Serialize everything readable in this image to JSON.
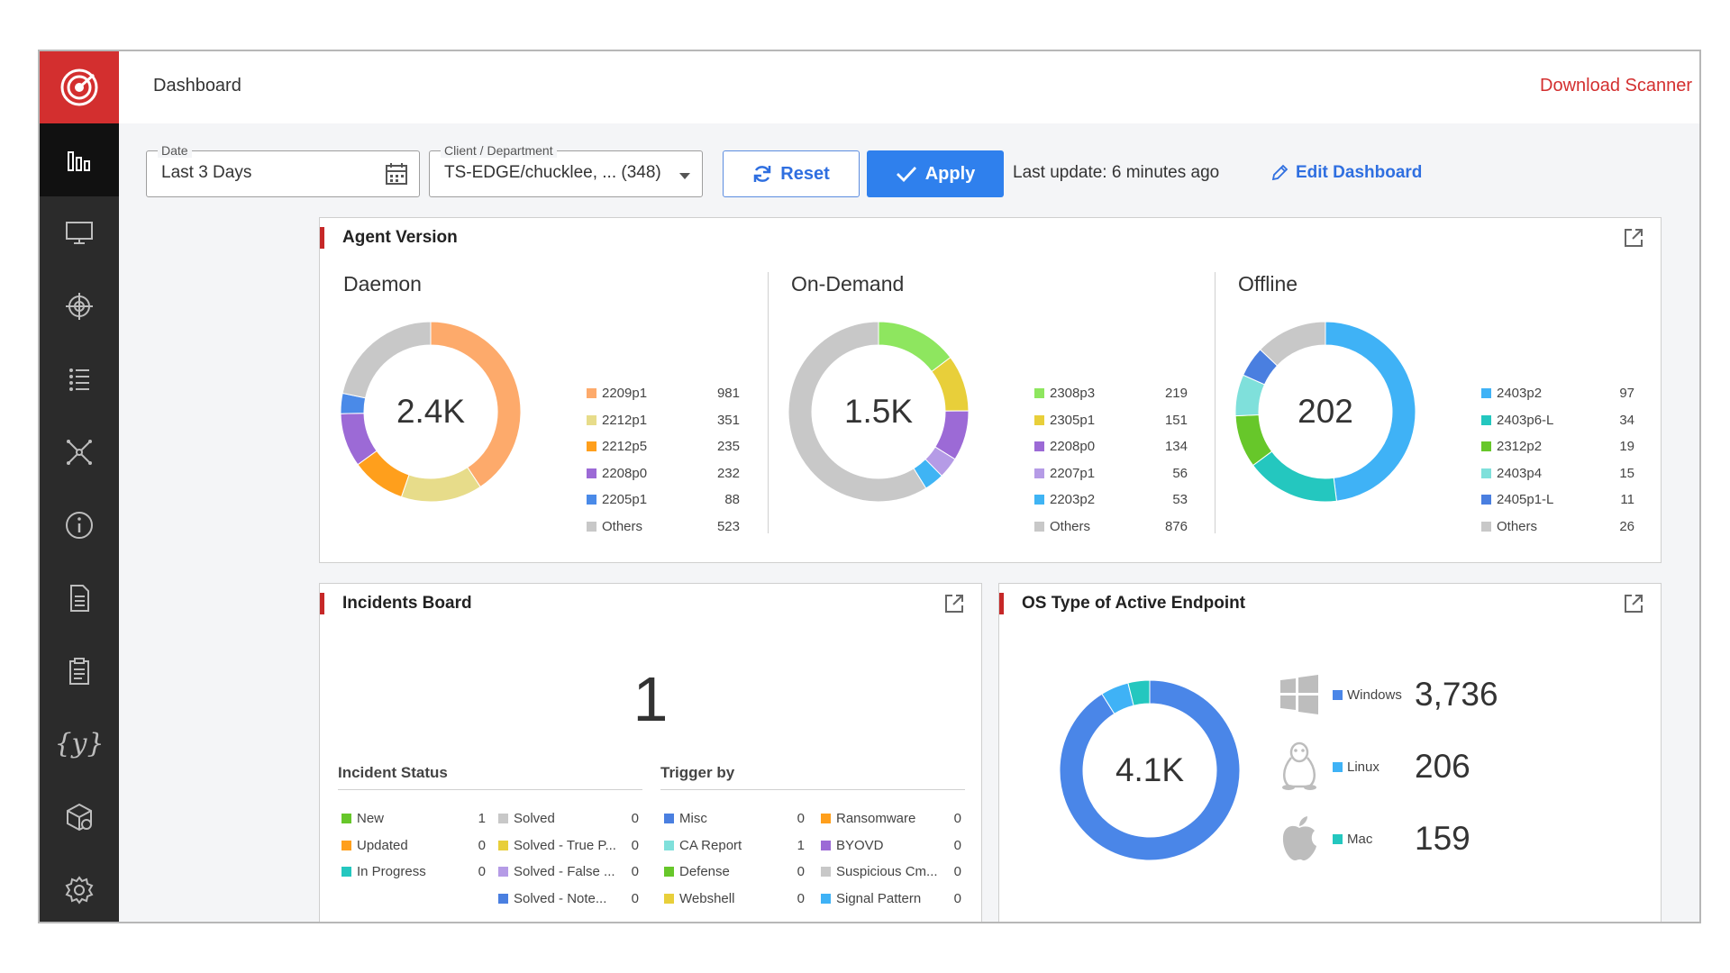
{
  "header": {
    "title": "Dashboard",
    "download_label": "Download Scanner"
  },
  "filters": {
    "date_label": "Date",
    "date_value": "Last 3 Days",
    "client_label": "Client / Department",
    "client_value": "TS-EDGE/chucklee, ... (348)",
    "reset_label": "Reset",
    "apply_label": "Apply",
    "last_update": "Last update: 6 minutes ago",
    "edit_label": "Edit Dashboard"
  },
  "agent_version": {
    "title": "Agent Version",
    "daemon": {
      "title": "Daemon",
      "center": "2.4K",
      "items": [
        {
          "label": "2209p1",
          "value": 981,
          "color": "#fdaa6b"
        },
        {
          "label": "2212p1",
          "value": 351,
          "color": "#e7dc8a"
        },
        {
          "label": "2212p5",
          "value": 235,
          "color": "#ff9f1c"
        },
        {
          "label": "2208p0",
          "value": 232,
          "color": "#9c6ad6"
        },
        {
          "label": "2205p1",
          "value": 88,
          "color": "#4a8ae8"
        },
        {
          "label": "Others",
          "value": 523,
          "color": "#c8c8c8"
        }
      ]
    },
    "ondemand": {
      "title": "On-Demand",
      "center": "1.5K",
      "items": [
        {
          "label": "2308p3",
          "value": 219,
          "color": "#8ee65f"
        },
        {
          "label": "2305p1",
          "value": 151,
          "color": "#e8cf3a"
        },
        {
          "label": "2208p0",
          "value": 134,
          "color": "#9c6ad6"
        },
        {
          "label": "2207p1",
          "value": 56,
          "color": "#b59be6"
        },
        {
          "label": "2203p2",
          "value": 53,
          "color": "#3fb4f4"
        },
        {
          "label": "Others",
          "value": 876,
          "color": "#c8c8c8"
        }
      ]
    },
    "offline": {
      "title": "Offline",
      "center": "202",
      "items": [
        {
          "label": "2403p2",
          "value": 97,
          "color": "#3fb2f6"
        },
        {
          "label": "2403p6-L",
          "value": 34,
          "color": "#24c7bf"
        },
        {
          "label": "2312p2",
          "value": 19,
          "color": "#67c72a"
        },
        {
          "label": "2403p4",
          "value": 15,
          "color": "#7fe0db"
        },
        {
          "label": "2405p1-L",
          "value": 11,
          "color": "#4a7fe0"
        },
        {
          "label": "Others",
          "value": 26,
          "color": "#c8c8c8"
        }
      ]
    }
  },
  "incidents": {
    "title": "Incidents Board",
    "count": "1",
    "status_head": "Incident Status",
    "trigger_head": "Trigger by",
    "status_left": [
      {
        "label": "New",
        "value": "1",
        "color": "#67c72a"
      },
      {
        "label": "Updated",
        "value": "0",
        "color": "#ff9f1c"
      },
      {
        "label": "In Progress",
        "value": "0",
        "color": "#24c7bf"
      }
    ],
    "status_right": [
      {
        "label": "Solved",
        "value": "0",
        "color": "#c8c8c8"
      },
      {
        "label": "Solved - True P...",
        "value": "0",
        "color": "#e8cf3a"
      },
      {
        "label": "Solved - False ...",
        "value": "0",
        "color": "#b59be6"
      },
      {
        "label": "Solved - Note...",
        "value": "0",
        "color": "#4a7fe0"
      }
    ],
    "trigger_left": [
      {
        "label": "Misc",
        "value": "0",
        "color": "#4a7fe0"
      },
      {
        "label": "CA Report",
        "value": "1",
        "color": "#7fe0db"
      },
      {
        "label": "Defense",
        "value": "0",
        "color": "#67c72a"
      },
      {
        "label": "Webshell",
        "value": "0",
        "color": "#e8cf3a"
      }
    ],
    "trigger_right": [
      {
        "label": "Ransomware",
        "value": "0",
        "color": "#ff9f1c"
      },
      {
        "label": "BYOVD",
        "value": "0",
        "color": "#9c6ad6"
      },
      {
        "label": "Suspicious Cm...",
        "value": "0",
        "color": "#c8c8c8"
      },
      {
        "label": "Signal Pattern",
        "value": "0",
        "color": "#3fb2f6"
      }
    ]
  },
  "os": {
    "title": "OS Type of Active Endpoint",
    "center": "4.1K",
    "items": [
      {
        "label": "Windows",
        "value": 3736,
        "display": "3,736",
        "color": "#4a86e8",
        "icon": "windows-icon"
      },
      {
        "label": "Linux",
        "value": 206,
        "display": "206",
        "color": "#3fb2f6",
        "icon": "linux-icon"
      },
      {
        "label": "Mac",
        "value": 159,
        "display": "159",
        "color": "#24c7bf",
        "icon": "apple-icon"
      }
    ]
  }
}
